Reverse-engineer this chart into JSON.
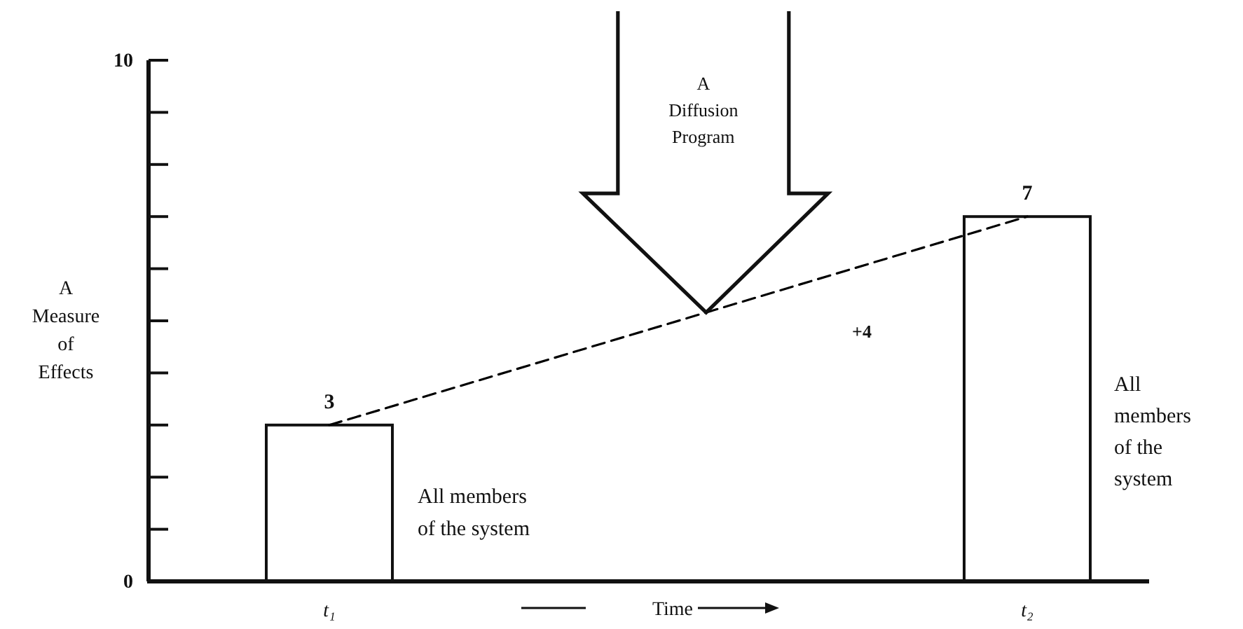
{
  "chart_data": {
    "type": "bar",
    "xlabel": "Time",
    "ylabel": "A\nMeasure\nof\nEffects",
    "categories": [
      "t₁",
      "t₂"
    ],
    "series": [
      {
        "color": "#ffffff",
        "values": [
          3,
          7
        ],
        "value_labels": [
          "3",
          "7"
        ]
      },
      {
        "type": "line",
        "color": "#000000",
        "line_style": "dashed",
        "values": [
          3,
          7
        ]
      }
    ],
    "ylim": [
      0,
      10
    ],
    "yticks": [
      0,
      {
        "value": 1,
        "label": null
      },
      {
        "value": 2,
        "label": null
      },
      {
        "value": 3,
        "label": null
      },
      {
        "value": 4,
        "label": null
      },
      {
        "value": 5,
        "label": null
      },
      {
        "value": 6,
        "label": null
      },
      {
        "value": 7,
        "label": null
      },
      {
        "value": 8,
        "label": null
      },
      {
        "value": 9,
        "label": null
      },
      10
    ],
    "annotations": [
      "A\nDiffusion\nProgram",
      "+4",
      "All members\nof the system",
      "All\nmembers\nof the\nsystem"
    ]
  }
}
